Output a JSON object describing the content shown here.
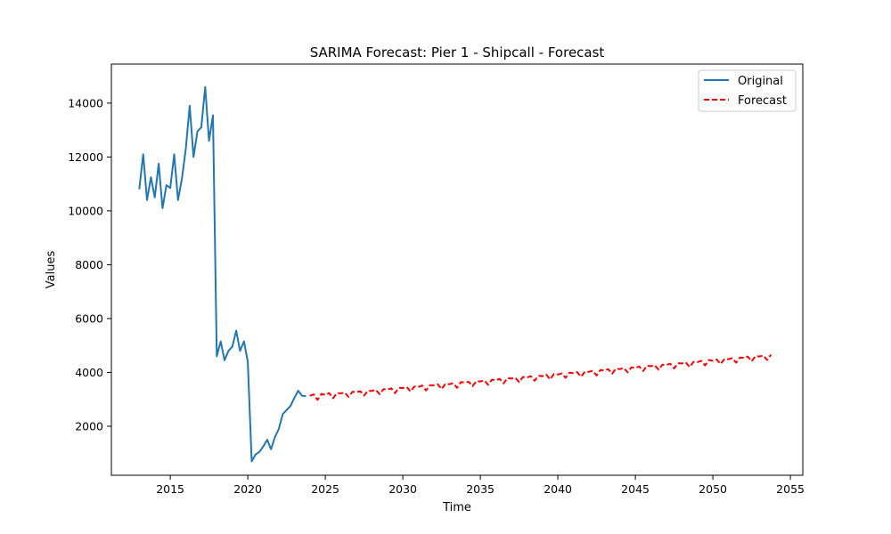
{
  "chart_data": {
    "type": "line",
    "title": "SARIMA Forecast: Pier 1 - Shipcall - Forecast",
    "xlabel": "Time",
    "ylabel": "Values",
    "xlim": [
      2011.2,
      2055.8
    ],
    "ylim": [
      180,
      15450
    ],
    "x_ticks": [
      2015,
      2020,
      2025,
      2030,
      2035,
      2040,
      2045,
      2050,
      2055
    ],
    "y_ticks": [
      2000,
      4000,
      6000,
      8000,
      10000,
      12000,
      14000
    ],
    "grid": false,
    "legend_position": "top-right",
    "series": [
      {
        "name": "Original",
        "color": "#1f77b4",
        "style": "solid",
        "x": [
          2013.0,
          2013.25,
          2013.5,
          2013.75,
          2014.0,
          2014.25,
          2014.5,
          2014.75,
          2015.0,
          2015.25,
          2015.5,
          2015.75,
          2016.0,
          2016.25,
          2016.5,
          2016.75,
          2017.0,
          2017.25,
          2017.5,
          2017.75,
          2018.0,
          2018.25,
          2018.5,
          2018.75,
          2019.0,
          2019.25,
          2019.5,
          2019.75,
          2020.0,
          2020.25,
          2020.5,
          2020.75,
          2021.0,
          2021.25,
          2021.5,
          2021.75,
          2022.0,
          2022.25,
          2022.5,
          2022.75,
          2023.0,
          2023.25,
          2023.5,
          2023.75
        ],
        "values": [
          10800,
          12100,
          10400,
          11250,
          10500,
          11750,
          10100,
          10950,
          10850,
          12100,
          10400,
          11200,
          12300,
          13900,
          12000,
          12950,
          13100,
          14600,
          12600,
          13550,
          4600,
          5150,
          4450,
          4800,
          4950,
          5550,
          4800,
          5150,
          4400,
          700,
          950,
          1050,
          1250,
          1500,
          1150,
          1600,
          1900,
          2450,
          2600,
          2750,
          3050,
          3320,
          3130,
          3120
        ]
      },
      {
        "name": "Forecast",
        "color": "#ff0000",
        "style": "dashed",
        "x_start": 2024.0,
        "x_step": 0.25,
        "values": [
          3130,
          3180,
          2980,
          3200,
          3160,
          3230,
          3040,
          3230,
          3220,
          3250,
          3090,
          3280,
          3270,
          3300,
          3140,
          3320,
          3310,
          3360,
          3190,
          3380,
          3360,
          3410,
          3230,
          3430,
          3420,
          3460,
          3290,
          3480,
          3460,
          3510,
          3330,
          3520,
          3520,
          3560,
          3380,
          3580,
          3560,
          3600,
          3430,
          3640,
          3620,
          3650,
          3490,
          3680,
          3660,
          3710,
          3540,
          3730,
          3710,
          3760,
          3590,
          3790,
          3770,
          3810,
          3640,
          3830,
          3810,
          3860,
          3690,
          3880,
          3860,
          3920,
          3740,
          3940,
          3920,
          3960,
          3800,
          3990,
          3970,
          4010,
          3840,
          4030,
          4020,
          4060,
          3890,
          4090,
          4070,
          4120,
          3950,
          4140,
          4120,
          4170,
          4000,
          4190,
          4170,
          4220,
          4050,
          4250,
          4230,
          4270,
          4100,
          4290,
          4280,
          4320,
          4150,
          4340,
          4330,
          4370,
          4200,
          4390,
          4380,
          4430,
          4260,
          4460,
          4430,
          4480,
          4310,
          4500,
          4490,
          4530,
          4360,
          4550,
          4540,
          4590,
          4410,
          4610,
          4590,
          4630,
          4460,
          4660
        ]
      }
    ]
  }
}
